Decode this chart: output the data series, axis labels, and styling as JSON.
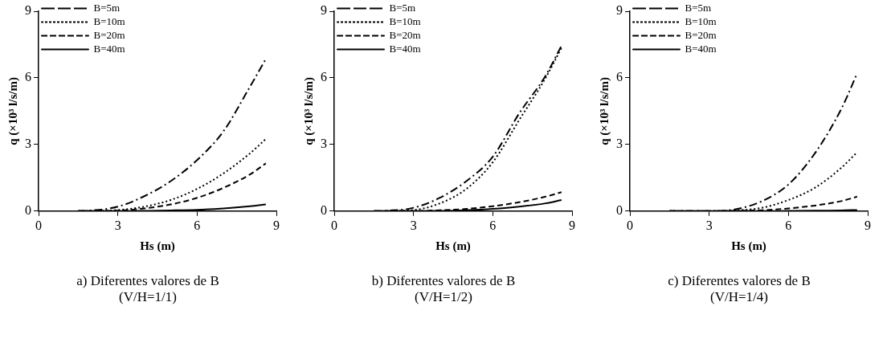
{
  "chart_data": [
    {
      "type": "line",
      "x": [
        1.5,
        2,
        3,
        4,
        5,
        6,
        7,
        8,
        8.6
      ],
      "xlabel": "Hs (m)",
      "ylabel": "q (×10³ l/s/m)",
      "xlim": [
        0,
        9
      ],
      "xticks": [
        0,
        3,
        6,
        9
      ],
      "ylim": [
        0,
        9
      ],
      "yticks": [
        0,
        3,
        6,
        9
      ],
      "grid": false,
      "legend": "top left",
      "marker": "none",
      "series": [
        {
          "name": "B=5m",
          "color": "#000000",
          "line_style": "dashdot",
          "values": [
            0,
            0.03,
            0.2,
            0.67,
            1.35,
            2.3,
            3.6,
            5.6,
            6.85
          ]
        },
        {
          "name": "B=10m",
          "color": "#000000",
          "line_style": "dotted",
          "values": [
            0,
            0.01,
            0.05,
            0.2,
            0.5,
            1.0,
            1.7,
            2.6,
            3.25
          ]
        },
        {
          "name": "B=20m",
          "color": "#000000",
          "line_style": "dashed",
          "values": [
            0,
            0,
            0.02,
            0.12,
            0.3,
            0.6,
            1.05,
            1.65,
            2.15
          ]
        },
        {
          "name": "B=40m",
          "color": "#000000",
          "line_style": "solid",
          "values": [
            0,
            0,
            0,
            0.01,
            0.03,
            0.06,
            0.12,
            0.22,
            0.3
          ]
        }
      ],
      "annotations": [
        "a) Diferentes valores de B",
        "(V/H=1/1)"
      ]
    },
    {
      "type": "line",
      "x": [
        1.5,
        2,
        3,
        4,
        5,
        6,
        7,
        8,
        8.6
      ],
      "xlabel": "Hs (m)",
      "ylabel": "q (×10³ l/s/m)",
      "xlim": [
        0,
        9
      ],
      "xticks": [
        0,
        3,
        6,
        9
      ],
      "ylim": [
        0,
        9
      ],
      "yticks": [
        0,
        3,
        6,
        9
      ],
      "grid": false,
      "legend": "top left",
      "marker": "none",
      "series": [
        {
          "name": "B=5m",
          "color": "#000000",
          "line_style": "dashdot",
          "values": [
            0,
            0.02,
            0.15,
            0.6,
            1.35,
            2.45,
            4.4,
            6.1,
            7.45
          ]
        },
        {
          "name": "B=10m",
          "color": "#000000",
          "line_style": "dotted",
          "x": [
            2,
            3,
            4,
            5,
            6,
            7,
            8,
            8.6
          ],
          "values": [
            0.01,
            0.05,
            0.35,
            1.0,
            2.2,
            4.1,
            6.0,
            7.35
          ]
        },
        {
          "name": "B=20m",
          "color": "#000000",
          "line_style": "dashed",
          "values": [
            0,
            0,
            0,
            0.04,
            0.1,
            0.22,
            0.4,
            0.65,
            0.85
          ]
        },
        {
          "name": "B=40m",
          "color": "#000000",
          "line_style": "solid",
          "values": [
            0,
            0,
            0,
            0.01,
            0.04,
            0.1,
            0.2,
            0.35,
            0.5
          ]
        }
      ],
      "annotations": [
        "b) Diferentes valores de B",
        "(V/H=1/2)"
      ]
    },
    {
      "type": "line",
      "x": [
        1.5,
        2,
        3,
        4,
        5,
        6,
        7,
        8,
        8.6
      ],
      "xlabel": "Hs (m)",
      "ylabel": "q (×10³ l/s/m)",
      "xlim": [
        0,
        9
      ],
      "xticks": [
        0,
        3,
        6,
        9
      ],
      "ylim": [
        0,
        9
      ],
      "yticks": [
        0,
        3,
        6,
        9
      ],
      "grid": false,
      "legend": "top left",
      "marker": "none",
      "series": [
        {
          "name": "B=5m",
          "color": "#000000",
          "line_style": "dashdot",
          "values": [
            0,
            0,
            0,
            0.08,
            0.45,
            1.2,
            2.6,
            4.6,
            6.2
          ]
        },
        {
          "name": "B=10m",
          "color": "#000000",
          "line_style": "dotted",
          "values": [
            0,
            0,
            0,
            0.03,
            0.15,
            0.5,
            1.05,
            1.95,
            2.65
          ]
        },
        {
          "name": "B=20m",
          "color": "#000000",
          "line_style": "dashed",
          "values": [
            0,
            0,
            0,
            0.01,
            0.04,
            0.12,
            0.25,
            0.45,
            0.65
          ]
        },
        {
          "name": "B=40m",
          "color": "#000000",
          "line_style": "solid",
          "values": [
            0,
            0,
            0,
            0,
            0,
            0.01,
            0.02,
            0.03,
            0.05
          ]
        }
      ],
      "annotations": [
        "c) Diferentes valores de B",
        "(V/H=1/4)"
      ]
    }
  ]
}
